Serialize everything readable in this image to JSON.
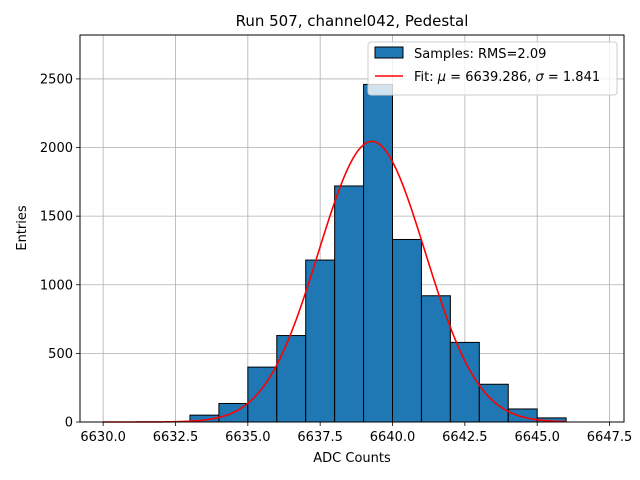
{
  "chart_data": {
    "type": "bar",
    "title": "Run 507, channel042, Pedestal",
    "xlabel": "ADC Counts",
    "ylabel": "Entries",
    "xlim": [
      6629.2,
      6648.0
    ],
    "ylim": [
      0,
      2820
    ],
    "grid": true,
    "legend_position": "top-right",
    "x_ticks": [
      6630.0,
      6632.5,
      6635.0,
      6637.5,
      6640.0,
      6642.5,
      6645.0,
      6647.5
    ],
    "x_tick_labels": [
      "6630.0",
      "6632.5",
      "6635.0",
      "6637.5",
      "6640.0",
      "6642.5",
      "6645.0",
      "6647.5"
    ],
    "y_ticks": [
      0,
      500,
      1000,
      1500,
      2000,
      2500
    ],
    "y_tick_labels": [
      "0",
      "500",
      "1000",
      "1500",
      "2000",
      "2500"
    ],
    "histogram": {
      "name": "Samples: RMS=2.09",
      "color": "#1f77b4",
      "edge_color": "#000000",
      "bin_edges": [
        6630,
        6631,
        6632,
        6633,
        6634,
        6635,
        6636,
        6637,
        6638,
        6639,
        6640,
        6641,
        6642,
        6643,
        6644,
        6645,
        6646
      ],
      "counts": [
        0,
        0,
        0,
        50,
        135,
        400,
        630,
        1180,
        1720,
        2460,
        1330,
        920,
        580,
        275,
        95,
        30
      ]
    },
    "fit": {
      "name": "Fit: μ = 6639.286, σ = 1.841",
      "legend_prefix": "Fit: ",
      "legend_mu_symbol": "μ",
      "legend_mu_value": " = 6639.286, ",
      "legend_sigma_symbol": "σ",
      "legend_sigma_value": " = 1.841",
      "color": "#ff0000",
      "mu": 6639.286,
      "sigma": 1.841,
      "amplitude": 2045,
      "x_range": [
        6630.0,
        6646.0
      ]
    }
  }
}
